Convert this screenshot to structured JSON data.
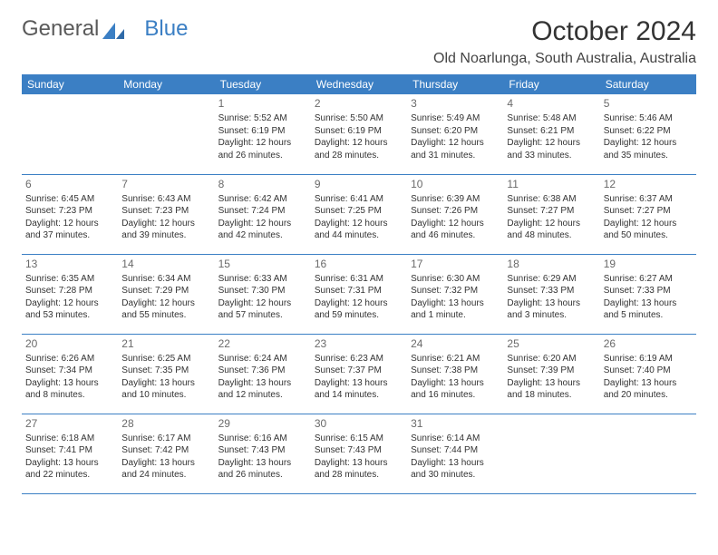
{
  "brand": {
    "word1": "General",
    "word2": "Blue"
  },
  "colors": {
    "header_bg": "#3b7fc4",
    "header_text": "#ffffff",
    "brand_blue": "#3b7fc4",
    "text": "#333333",
    "daynum": "#6a6a6a",
    "rule": "#3b7fc4",
    "background": "#ffffff"
  },
  "typography": {
    "family": "Arial",
    "month_title_size": 30,
    "location_size": 16,
    "header_cell_size": 12,
    "daynum_size": 12,
    "body_size": 10
  },
  "calendar": {
    "title": "October 2024",
    "location": "Old Noarlunga, South Australia, Australia",
    "weekdays": [
      "Sunday",
      "Monday",
      "Tuesday",
      "Wednesday",
      "Thursday",
      "Friday",
      "Saturday"
    ],
    "weeks": [
      [
        null,
        null,
        {
          "n": "1",
          "sunrise": "5:52 AM",
          "sunset": "6:19 PM",
          "daylight": "12 hours and 26 minutes."
        },
        {
          "n": "2",
          "sunrise": "5:50 AM",
          "sunset": "6:19 PM",
          "daylight": "12 hours and 28 minutes."
        },
        {
          "n": "3",
          "sunrise": "5:49 AM",
          "sunset": "6:20 PM",
          "daylight": "12 hours and 31 minutes."
        },
        {
          "n": "4",
          "sunrise": "5:48 AM",
          "sunset": "6:21 PM",
          "daylight": "12 hours and 33 minutes."
        },
        {
          "n": "5",
          "sunrise": "5:46 AM",
          "sunset": "6:22 PM",
          "daylight": "12 hours and 35 minutes."
        }
      ],
      [
        {
          "n": "6",
          "sunrise": "6:45 AM",
          "sunset": "7:23 PM",
          "daylight": "12 hours and 37 minutes."
        },
        {
          "n": "7",
          "sunrise": "6:43 AM",
          "sunset": "7:23 PM",
          "daylight": "12 hours and 39 minutes."
        },
        {
          "n": "8",
          "sunrise": "6:42 AM",
          "sunset": "7:24 PM",
          "daylight": "12 hours and 42 minutes."
        },
        {
          "n": "9",
          "sunrise": "6:41 AM",
          "sunset": "7:25 PM",
          "daylight": "12 hours and 44 minutes."
        },
        {
          "n": "10",
          "sunrise": "6:39 AM",
          "sunset": "7:26 PM",
          "daylight": "12 hours and 46 minutes."
        },
        {
          "n": "11",
          "sunrise": "6:38 AM",
          "sunset": "7:27 PM",
          "daylight": "12 hours and 48 minutes."
        },
        {
          "n": "12",
          "sunrise": "6:37 AM",
          "sunset": "7:27 PM",
          "daylight": "12 hours and 50 minutes."
        }
      ],
      [
        {
          "n": "13",
          "sunrise": "6:35 AM",
          "sunset": "7:28 PM",
          "daylight": "12 hours and 53 minutes."
        },
        {
          "n": "14",
          "sunrise": "6:34 AM",
          "sunset": "7:29 PM",
          "daylight": "12 hours and 55 minutes."
        },
        {
          "n": "15",
          "sunrise": "6:33 AM",
          "sunset": "7:30 PM",
          "daylight": "12 hours and 57 minutes."
        },
        {
          "n": "16",
          "sunrise": "6:31 AM",
          "sunset": "7:31 PM",
          "daylight": "12 hours and 59 minutes."
        },
        {
          "n": "17",
          "sunrise": "6:30 AM",
          "sunset": "7:32 PM",
          "daylight": "13 hours and 1 minute."
        },
        {
          "n": "18",
          "sunrise": "6:29 AM",
          "sunset": "7:33 PM",
          "daylight": "13 hours and 3 minutes."
        },
        {
          "n": "19",
          "sunrise": "6:27 AM",
          "sunset": "7:33 PM",
          "daylight": "13 hours and 5 minutes."
        }
      ],
      [
        {
          "n": "20",
          "sunrise": "6:26 AM",
          "sunset": "7:34 PM",
          "daylight": "13 hours and 8 minutes."
        },
        {
          "n": "21",
          "sunrise": "6:25 AM",
          "sunset": "7:35 PM",
          "daylight": "13 hours and 10 minutes."
        },
        {
          "n": "22",
          "sunrise": "6:24 AM",
          "sunset": "7:36 PM",
          "daylight": "13 hours and 12 minutes."
        },
        {
          "n": "23",
          "sunrise": "6:23 AM",
          "sunset": "7:37 PM",
          "daylight": "13 hours and 14 minutes."
        },
        {
          "n": "24",
          "sunrise": "6:21 AM",
          "sunset": "7:38 PM",
          "daylight": "13 hours and 16 minutes."
        },
        {
          "n": "25",
          "sunrise": "6:20 AM",
          "sunset": "7:39 PM",
          "daylight": "13 hours and 18 minutes."
        },
        {
          "n": "26",
          "sunrise": "6:19 AM",
          "sunset": "7:40 PM",
          "daylight": "13 hours and 20 minutes."
        }
      ],
      [
        {
          "n": "27",
          "sunrise": "6:18 AM",
          "sunset": "7:41 PM",
          "daylight": "13 hours and 22 minutes."
        },
        {
          "n": "28",
          "sunrise": "6:17 AM",
          "sunset": "7:42 PM",
          "daylight": "13 hours and 24 minutes."
        },
        {
          "n": "29",
          "sunrise": "6:16 AM",
          "sunset": "7:43 PM",
          "daylight": "13 hours and 26 minutes."
        },
        {
          "n": "30",
          "sunrise": "6:15 AM",
          "sunset": "7:43 PM",
          "daylight": "13 hours and 28 minutes."
        },
        {
          "n": "31",
          "sunrise": "6:14 AM",
          "sunset": "7:44 PM",
          "daylight": "13 hours and 30 minutes."
        },
        null,
        null
      ]
    ],
    "labels": {
      "sunrise": "Sunrise:",
      "sunset": "Sunset:",
      "daylight": "Daylight:"
    }
  }
}
